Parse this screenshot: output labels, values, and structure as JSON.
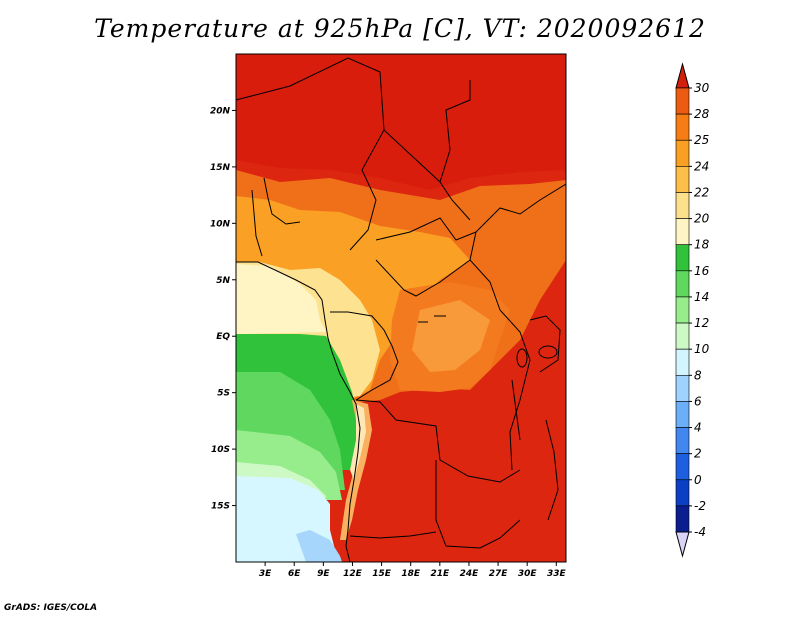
{
  "title": "Temperature at 925hPa [C], VT: 2020092612",
  "footer": "GrADS: IGES/COLA",
  "map": {
    "lon_range": [
      0,
      34
    ],
    "lat_range": [
      -20,
      25
    ],
    "lat_ticks": [
      "20N",
      "15N",
      "10N",
      "5N",
      "EQ",
      "5S",
      "10S",
      "15S"
    ],
    "lat_values": [
      20,
      15,
      10,
      5,
      0,
      -5,
      -10,
      -15
    ],
    "lon_ticks": [
      "3E",
      "6E",
      "9E",
      "12E",
      "15E",
      "18E",
      "21E",
      "24E",
      "27E",
      "30E",
      "33E"
    ],
    "lon_values": [
      3,
      6,
      9,
      12,
      15,
      18,
      21,
      24,
      27,
      30,
      33
    ]
  },
  "colorbar": {
    "labels": [
      "30",
      "28",
      "25",
      "24",
      "22",
      "20",
      "18",
      "16",
      "14",
      "12",
      "10",
      "8",
      "6",
      "4",
      "2",
      "0",
      "-2",
      "-4"
    ],
    "colors": [
      "#e02a10",
      "#ed5a12",
      "#f57d14",
      "#f9a023",
      "#fbbf4a",
      "#fde08c",
      "#fff5c4",
      "#30c23a",
      "#60d860",
      "#97ec8c",
      "#cdf9c4",
      "#d2f5ff",
      "#a0d2ff",
      "#6caef8",
      "#4287f0",
      "#1d5fe0",
      "#0b3fc4",
      "#0a1e90"
    ],
    "top_color": "#d3200c",
    "bottom_color": "#d9d3f8"
  }
}
